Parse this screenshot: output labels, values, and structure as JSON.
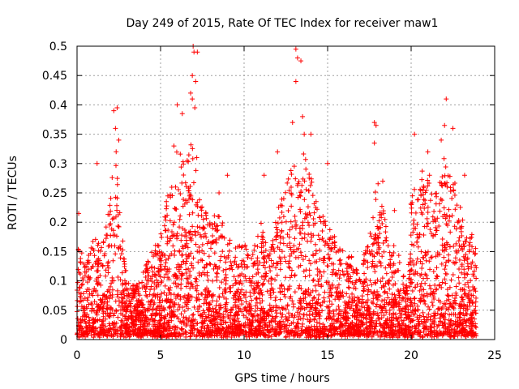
{
  "chart_data": {
    "type": "scatter",
    "title": "Day 249 of 2015, Rate Of TEC Index for receiver maw1",
    "xlabel": "GPS time / hours",
    "ylabel": "ROTI / TECUs",
    "xlim": [
      0,
      25
    ],
    "ylim": [
      0,
      0.5
    ],
    "x_ticks": [
      0,
      5,
      10,
      15,
      20,
      25
    ],
    "y_ticks": [
      0,
      0.05,
      0.1,
      0.15,
      0.2,
      0.25,
      0.3,
      0.35,
      0.4,
      0.45,
      0.5
    ],
    "x_tick_labels": [
      "0",
      "5",
      "10",
      "15",
      "20",
      "25"
    ],
    "y_tick_labels": [
      "0",
      "0.05",
      "0.1",
      "0.15",
      "0.2",
      "0.25",
      "0.3",
      "0.35",
      "0.4",
      "0.45",
      "0.5"
    ],
    "grid": true,
    "marker": "plus",
    "color": "#ff0000",
    "series": [
      {
        "name": "ROTI",
        "x_range": [
          0,
          23.9
        ],
        "point_count": 4200,
        "envelope": [
          {
            "x": 0.0,
            "ymax": 0.16
          },
          {
            "x": 0.5,
            "ymax": 0.14
          },
          {
            "x": 1.0,
            "ymax": 0.17
          },
          {
            "x": 1.5,
            "ymax": 0.16
          },
          {
            "x": 2.0,
            "ymax": 0.25
          },
          {
            "x": 2.3,
            "ymax": 0.35
          },
          {
            "x": 2.6,
            "ymax": 0.22
          },
          {
            "x": 3.0,
            "ymax": 0.1
          },
          {
            "x": 3.5,
            "ymax": 0.09
          },
          {
            "x": 4.0,
            "ymax": 0.12
          },
          {
            "x": 4.5,
            "ymax": 0.15
          },
          {
            "x": 5.0,
            "ymax": 0.18
          },
          {
            "x": 5.5,
            "ymax": 0.27
          },
          {
            "x": 6.0,
            "ymax": 0.32
          },
          {
            "x": 6.5,
            "ymax": 0.3
          },
          {
            "x": 7.0,
            "ymax": 0.36
          },
          {
            "x": 7.5,
            "ymax": 0.25
          },
          {
            "x": 8.0,
            "ymax": 0.2
          },
          {
            "x": 8.5,
            "ymax": 0.22
          },
          {
            "x": 9.0,
            "ymax": 0.17
          },
          {
            "x": 9.5,
            "ymax": 0.16
          },
          {
            "x": 10.0,
            "ymax": 0.17
          },
          {
            "x": 10.5,
            "ymax": 0.16
          },
          {
            "x": 11.0,
            "ymax": 0.2
          },
          {
            "x": 11.5,
            "ymax": 0.14
          },
          {
            "x": 12.0,
            "ymax": 0.22
          },
          {
            "x": 12.5,
            "ymax": 0.28
          },
          {
            "x": 13.0,
            "ymax": 0.3
          },
          {
            "x": 13.5,
            "ymax": 0.33
          },
          {
            "x": 14.0,
            "ymax": 0.28
          },
          {
            "x": 14.5,
            "ymax": 0.24
          },
          {
            "x": 15.0,
            "ymax": 0.2
          },
          {
            "x": 15.5,
            "ymax": 0.18
          },
          {
            "x": 16.0,
            "ymax": 0.15
          },
          {
            "x": 16.5,
            "ymax": 0.14
          },
          {
            "x": 17.0,
            "ymax": 0.12
          },
          {
            "x": 17.5,
            "ymax": 0.18
          },
          {
            "x": 18.0,
            "ymax": 0.28
          },
          {
            "x": 18.5,
            "ymax": 0.2
          },
          {
            "x": 19.0,
            "ymax": 0.16
          },
          {
            "x": 19.5,
            "ymax": 0.12
          },
          {
            "x": 19.8,
            "ymax": 0.08
          },
          {
            "x": 20.0,
            "ymax": 0.25
          },
          {
            "x": 20.5,
            "ymax": 0.3
          },
          {
            "x": 21.0,
            "ymax": 0.28
          },
          {
            "x": 21.5,
            "ymax": 0.26
          },
          {
            "x": 22.0,
            "ymax": 0.32
          },
          {
            "x": 22.5,
            "ymax": 0.28
          },
          {
            "x": 23.0,
            "ymax": 0.22
          },
          {
            "x": 23.5,
            "ymax": 0.2
          },
          {
            "x": 23.9,
            "ymax": 0.15
          }
        ],
        "outliers": [
          {
            "x": 2.2,
            "y": 0.39
          },
          {
            "x": 2.4,
            "y": 0.395
          },
          {
            "x": 2.3,
            "y": 0.36
          },
          {
            "x": 2.5,
            "y": 0.34
          },
          {
            "x": 6.0,
            "y": 0.4
          },
          {
            "x": 6.3,
            "y": 0.385
          },
          {
            "x": 6.8,
            "y": 0.42
          },
          {
            "x": 6.9,
            "y": 0.45
          },
          {
            "x": 6.95,
            "y": 0.5
          },
          {
            "x": 7.0,
            "y": 0.49
          },
          {
            "x": 7.1,
            "y": 0.44
          },
          {
            "x": 7.2,
            "y": 0.49
          },
          {
            "x": 6.9,
            "y": 0.41
          },
          {
            "x": 7.05,
            "y": 0.395
          },
          {
            "x": 13.1,
            "y": 0.495
          },
          {
            "x": 13.2,
            "y": 0.48
          },
          {
            "x": 13.4,
            "y": 0.475
          },
          {
            "x": 13.1,
            "y": 0.44
          },
          {
            "x": 13.5,
            "y": 0.38
          },
          {
            "x": 13.6,
            "y": 0.35
          },
          {
            "x": 12.9,
            "y": 0.37
          },
          {
            "x": 17.8,
            "y": 0.37
          },
          {
            "x": 17.9,
            "y": 0.365
          },
          {
            "x": 17.8,
            "y": 0.335
          },
          {
            "x": 22.1,
            "y": 0.41
          },
          {
            "x": 22.0,
            "y": 0.365
          },
          {
            "x": 21.8,
            "y": 0.34
          },
          {
            "x": 22.5,
            "y": 0.36
          },
          {
            "x": 20.2,
            "y": 0.35
          },
          {
            "x": 12.0,
            "y": 0.32
          },
          {
            "x": 9.0,
            "y": 0.28
          },
          {
            "x": 11.2,
            "y": 0.28
          },
          {
            "x": 14.0,
            "y": 0.35
          },
          {
            "x": 15.0,
            "y": 0.3
          },
          {
            "x": 1.2,
            "y": 0.3
          },
          {
            "x": 0.1,
            "y": 0.215
          },
          {
            "x": 18.3,
            "y": 0.27
          },
          {
            "x": 19.0,
            "y": 0.22
          },
          {
            "x": 21.0,
            "y": 0.32
          },
          {
            "x": 23.2,
            "y": 0.28
          },
          {
            "x": 8.5,
            "y": 0.25
          },
          {
            "x": 5.8,
            "y": 0.33
          }
        ]
      }
    ]
  }
}
